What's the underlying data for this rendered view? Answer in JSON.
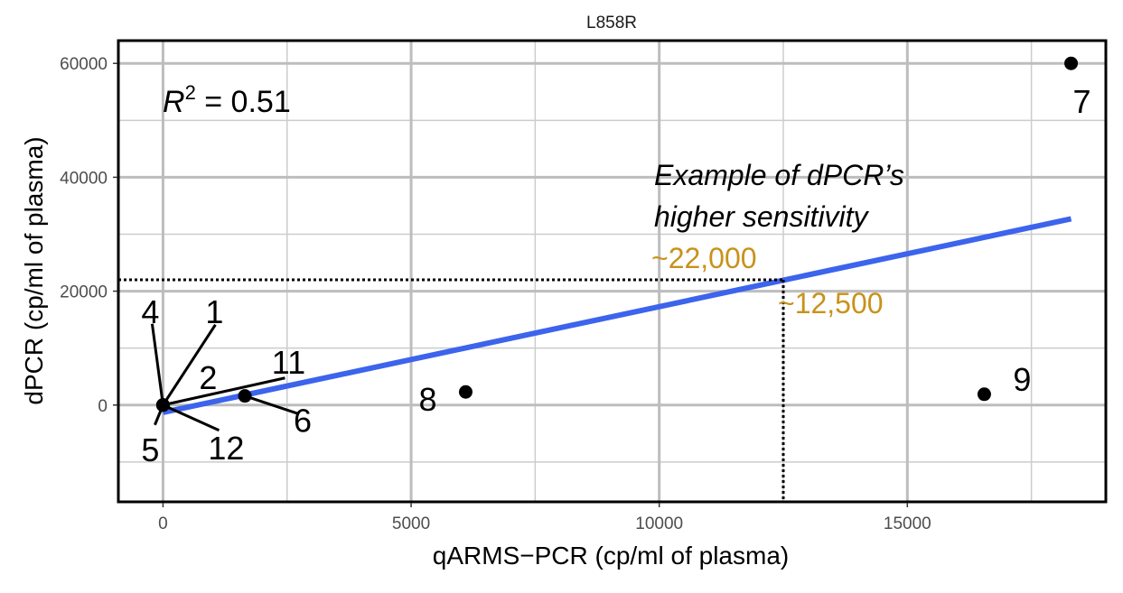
{
  "chart_data": {
    "type": "scatter",
    "title": "L858R",
    "xlabel": "qARMS−PCR (cp/ml of plasma)",
    "ylabel": "dPCR (cp/ml of plasma)",
    "xlim": [
      -900,
      19000
    ],
    "ylim": [
      -17000,
      64000
    ],
    "x_ticks": [
      0,
      5000,
      10000,
      15000
    ],
    "x_tick_labels": [
      "0",
      "5000",
      "10000",
      "15000"
    ],
    "y_ticks": [
      0,
      20000,
      40000,
      60000
    ],
    "y_tick_labels": [
      "0",
      "20000",
      "40000",
      "60000"
    ],
    "x_minor": [
      2500,
      7500,
      12500,
      17500
    ],
    "y_minor": [
      -10000,
      10000,
      30000,
      50000
    ],
    "grid": true,
    "points": [
      {
        "label": "1",
        "x": 0,
        "y": 0
      },
      {
        "label": "2",
        "x": 0,
        "y": 0
      },
      {
        "label": "4",
        "x": 0,
        "y": 0
      },
      {
        "label": "5",
        "x": 0,
        "y": 0
      },
      {
        "label": "11",
        "x": 0,
        "y": 0
      },
      {
        "label": "12",
        "x": 0,
        "y": 0
      },
      {
        "label": "6",
        "x": 1650,
        "y": 1600
      },
      {
        "label": "8",
        "x": 6100,
        "y": 2300
      },
      {
        "label": "9",
        "x": 16550,
        "y": 1900
      },
      {
        "label": "7",
        "x": 18300,
        "y": 60000
      }
    ],
    "fit_line": {
      "x": [
        0,
        18300
      ],
      "y": [
        -1300,
        32700
      ],
      "color": "#3c64ec"
    },
    "annotations": {
      "r2_base": "R",
      "r2_exp": "2",
      "r2_value": " = 0.51",
      "example_line1": "Example of dPCR’s",
      "example_line2": "higher sensitivity",
      "y_marker_label": "~22,000",
      "x_marker_label": "~12,500",
      "marker_x": 12500,
      "marker_y": 22000,
      "marker_color": "#c8921a"
    }
  }
}
